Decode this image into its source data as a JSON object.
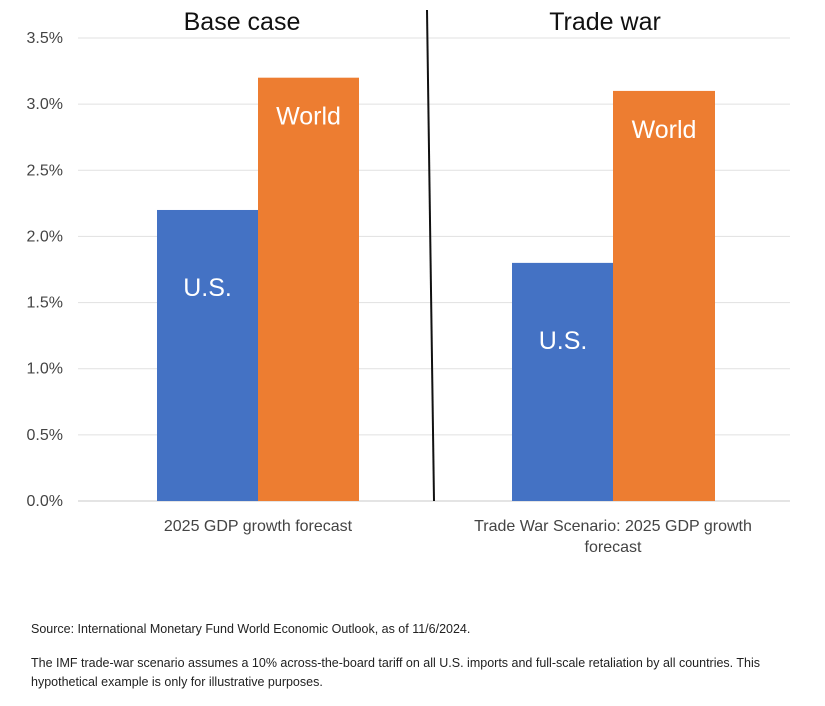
{
  "chart_data": {
    "type": "bar",
    "panels": [
      {
        "title": "Base case",
        "category": "2025 GDP growth forecast",
        "series": [
          {
            "name": "U.S.",
            "value": 2.2,
            "color": "#4472C4"
          },
          {
            "name": "World",
            "value": 3.2,
            "color": "#ED7D31"
          }
        ]
      },
      {
        "title": "Trade war",
        "category": "Trade War Scenario: 2025 GDP growth forecast",
        "category_lines": [
          "Trade War Scenario: 2025 GDP growth",
          "forecast"
        ],
        "series": [
          {
            "name": "U.S.",
            "value": 1.8,
            "color": "#4472C4"
          },
          {
            "name": "World",
            "value": 3.1,
            "color": "#ED7D31"
          }
        ]
      }
    ],
    "y_ticks": [
      "0.0%",
      "0.5%",
      "1.0%",
      "1.5%",
      "2.0%",
      "2.5%",
      "3.0%",
      "3.5%"
    ],
    "ylim": [
      0,
      3.5
    ],
    "y_unit": "%",
    "grid": true,
    "divider_between_panels": true
  },
  "notes": {
    "source": "Source: International Monetary Fund World Economic Outlook, as of 11/6/2024.",
    "footnote": "The IMF trade-war scenario assumes a 10% across-the-board tariff on all U.S. imports and full-scale retaliation by all countries. This hypothetical example is only for illustrative purposes."
  }
}
